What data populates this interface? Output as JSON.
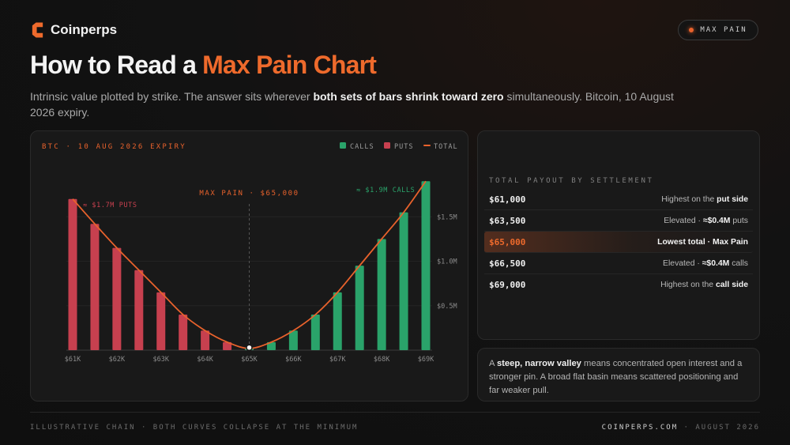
{
  "brand": {
    "name": "Coinperps"
  },
  "badge": {
    "label": "MAX PAIN"
  },
  "title": {
    "lead": "How to Read a ",
    "accent": "Max Pain Chart"
  },
  "subtitle": {
    "pre": "Intrinsic value plotted by strike. The answer sits wherever ",
    "bold": "both sets of bars shrink toward zero",
    "post": " simultaneously. Bitcoin, 10 August 2026 expiry."
  },
  "colors": {
    "calls": "#2aa36a",
    "puts": "#c7404f",
    "total": "#e8622c",
    "accent": "#ee6a2c"
  },
  "chart_data": {
    "type": "bar",
    "title": "BTC · 10 AUG 2026 EXPIRY",
    "legend": {
      "placement": "top-right",
      "items": [
        "CALLS",
        "PUTS",
        "TOTAL"
      ]
    },
    "categories": [
      "$61K",
      "$62K",
      "$63K",
      "$64K",
      "$65K",
      "$66K",
      "$67K",
      "$68K",
      "$69K"
    ],
    "x": [
      61000,
      61500,
      62000,
      62500,
      63000,
      63500,
      64000,
      64500,
      65000,
      65500,
      66000,
      66500,
      67000,
      67500,
      68000,
      68500,
      69000
    ],
    "series": [
      {
        "name": "PUTS",
        "values": [
          1.7,
          1.42,
          1.15,
          0.9,
          0.65,
          0.4,
          0.22,
          0.09,
          0.02,
          0,
          0,
          0,
          0,
          0,
          0,
          0,
          0
        ]
      },
      {
        "name": "CALLS",
        "values": [
          0,
          0,
          0,
          0,
          0,
          0,
          0,
          0,
          0.02,
          0.09,
          0.22,
          0.4,
          0.65,
          0.95,
          1.25,
          1.55,
          1.9
        ]
      },
      {
        "name": "TOTAL",
        "values": [
          1.7,
          1.42,
          1.15,
          0.9,
          0.65,
          0.4,
          0.22,
          0.09,
          0.02,
          0.09,
          0.22,
          0.4,
          0.65,
          0.95,
          1.25,
          1.55,
          1.9
        ]
      }
    ],
    "y_ticks": [
      0.5,
      1.0,
      1.5
    ],
    "y_tick_labels": [
      "$0.5M",
      "$1.0M",
      "$1.5M"
    ],
    "ylim": [
      0,
      2.0
    ],
    "xlabel": "",
    "ylabel": "",
    "grid": true,
    "max_pain": {
      "x": 65000,
      "label": "MAX PAIN · $65,000"
    },
    "annotations": [
      {
        "text": "≈ $1.7M PUTS",
        "x": 61000,
        "y": 1.7
      },
      {
        "text": "≈ $1.9M CALLS",
        "x": 69000,
        "y": 1.9
      }
    ]
  },
  "table": {
    "heading": "TOTAL PAYOUT BY SETTLEMENT",
    "rows": [
      {
        "strike": "$61,000",
        "pre": "Highest on the ",
        "bold": "put side",
        "post": ""
      },
      {
        "strike": "$63,500",
        "pre": "Elevated · ",
        "bold": "≈$0.4M",
        "post": " puts"
      },
      {
        "strike": "$65,000",
        "pre": "Lowest total · Max Pain",
        "bold": "",
        "post": ""
      },
      {
        "strike": "$66,500",
        "pre": "Elevated · ",
        "bold": "≈$0.4M",
        "post": " calls"
      },
      {
        "strike": "$69,000",
        "pre": "Highest on the ",
        "bold": "call side",
        "post": ""
      }
    ]
  },
  "note": {
    "bold1": "steep, narrow valley",
    "pre": "A ",
    "post": " means concentrated open interest and a stronger pin. A broad flat basin means scattered positioning and far weaker pull."
  },
  "footer": {
    "left": "ILLUSTRATIVE CHAIN · BOTH CURVES COLLAPSE AT THE MINIMUM",
    "site": "COINPERPS.COM",
    "sep": " · ",
    "date": "AUGUST 2026"
  }
}
